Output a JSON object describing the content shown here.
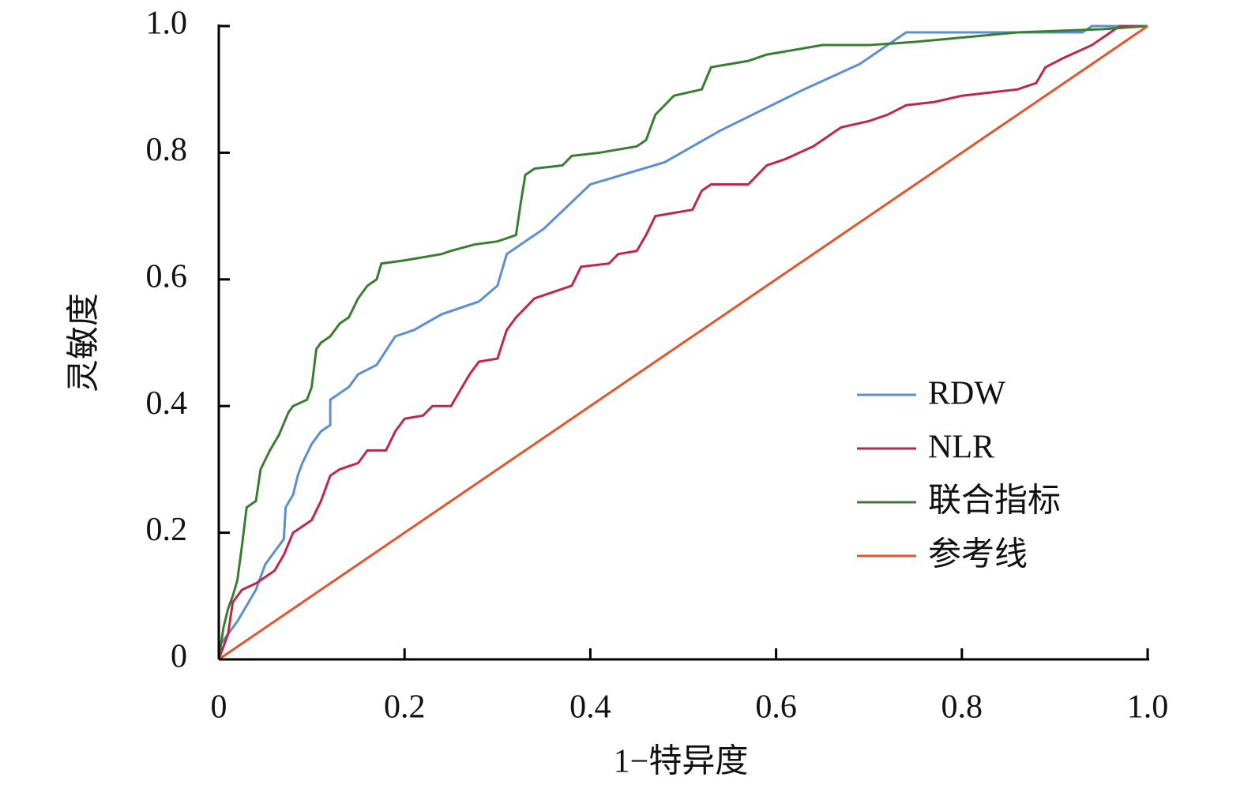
{
  "chart_data": {
    "type": "line",
    "xlabel": "1−特异度",
    "ylabel": "灵敏度",
    "xlim": [
      0,
      1
    ],
    "ylim": [
      0,
      1
    ],
    "xticks": [
      0,
      0.2,
      0.4,
      0.6,
      0.8,
      {
        "value": 1,
        "label": "1.0"
      }
    ],
    "yticks": [
      0,
      0.2,
      0.4,
      0.6,
      0.8,
      {
        "value": 1,
        "label": "1.0"
      }
    ],
    "series": [
      {
        "name": "RDW",
        "color": "#5b8fd0",
        "x": [
          0,
          0,
          0.01,
          0.02,
          0.03,
          0.04,
          0.05,
          0.06,
          0.07,
          0.072,
          0.08,
          0.085,
          0.09,
          0.1,
          0.11,
          0.12,
          0.12,
          0.14,
          0.15,
          0.17,
          0.19,
          0.21,
          0.24,
          0.28,
          0.3,
          0.31,
          0.35,
          0.4,
          0.48,
          0.54,
          0.63,
          0.69,
          0.74,
          0.93,
          0.94,
          1
        ],
        "values": [
          0,
          0.02,
          0.04,
          0.06,
          0.085,
          0.11,
          0.15,
          0.17,
          0.19,
          0.24,
          0.26,
          0.29,
          0.31,
          0.34,
          0.36,
          0.37,
          0.41,
          0.43,
          0.45,
          0.465,
          0.51,
          0.52,
          0.545,
          0.565,
          0.59,
          0.64,
          0.68,
          0.75,
          0.785,
          0.835,
          0.9,
          0.94,
          0.99,
          0.99,
          1,
          1
        ]
      },
      {
        "name": "NLR",
        "color": "#c0264a",
        "x": [
          0,
          0.01,
          0.015,
          0.02,
          0.025,
          0.04,
          0.05,
          0.06,
          0.07,
          0.08,
          0.09,
          0.1,
          0.11,
          0.12,
          0.13,
          0.15,
          0.16,
          0.18,
          0.19,
          0.2,
          0.22,
          0.23,
          0.25,
          0.27,
          0.28,
          0.3,
          0.31,
          0.32,
          0.34,
          0.36,
          0.38,
          0.39,
          0.42,
          0.43,
          0.45,
          0.46,
          0.47,
          0.51,
          0.52,
          0.53,
          0.57,
          0.59,
          0.61,
          0.64,
          0.67,
          0.7,
          0.72,
          0.74,
          0.77,
          0.8,
          0.83,
          0.86,
          0.88,
          0.89,
          0.91,
          0.94,
          0.96,
          0.97,
          1
        ],
        "values": [
          0,
          0.04,
          0.09,
          0.1,
          0.11,
          0.12,
          0.13,
          0.14,
          0.165,
          0.2,
          0.21,
          0.22,
          0.25,
          0.29,
          0.3,
          0.31,
          0.33,
          0.33,
          0.36,
          0.38,
          0.385,
          0.4,
          0.4,
          0.45,
          0.47,
          0.475,
          0.52,
          0.54,
          0.57,
          0.58,
          0.59,
          0.62,
          0.625,
          0.64,
          0.645,
          0.67,
          0.7,
          0.71,
          0.74,
          0.75,
          0.75,
          0.78,
          0.79,
          0.81,
          0.84,
          0.85,
          0.86,
          0.875,
          0.88,
          0.89,
          0.895,
          0.9,
          0.91,
          0.935,
          0.95,
          0.97,
          0.99,
          1,
          1
        ]
      },
      {
        "name": "联合指标",
        "color": "#3a7d32",
        "x": [
          0,
          0.005,
          0.01,
          0.015,
          0.02,
          0.025,
          0.03,
          0.04,
          0.045,
          0.055,
          0.065,
          0.075,
          0.08,
          0.095,
          0.1,
          0.105,
          0.11,
          0.12,
          0.13,
          0.14,
          0.15,
          0.16,
          0.17,
          0.175,
          0.2,
          0.24,
          0.25,
          0.275,
          0.3,
          0.32,
          0.325,
          0.33,
          0.34,
          0.37,
          0.38,
          0.41,
          0.45,
          0.46,
          0.47,
          0.48,
          0.49,
          0.52,
          0.53,
          0.57,
          0.59,
          0.65,
          0.7,
          0.75,
          0.86,
          0.95,
          1
        ],
        "values": [
          0,
          0.05,
          0.08,
          0.1,
          0.125,
          0.18,
          0.24,
          0.25,
          0.3,
          0.33,
          0.355,
          0.39,
          0.4,
          0.41,
          0.43,
          0.49,
          0.5,
          0.51,
          0.53,
          0.54,
          0.57,
          0.59,
          0.6,
          0.625,
          0.63,
          0.64,
          0.645,
          0.655,
          0.66,
          0.67,
          0.72,
          0.765,
          0.775,
          0.78,
          0.795,
          0.8,
          0.81,
          0.82,
          0.86,
          0.875,
          0.89,
          0.9,
          0.935,
          0.945,
          0.955,
          0.97,
          0.97,
          0.975,
          0.99,
          0.995,
          1
        ]
      },
      {
        "name": "参考线",
        "color": "#e0562a",
        "x": [
          0,
          1
        ],
        "values": [
          0,
          1
        ]
      }
    ]
  }
}
